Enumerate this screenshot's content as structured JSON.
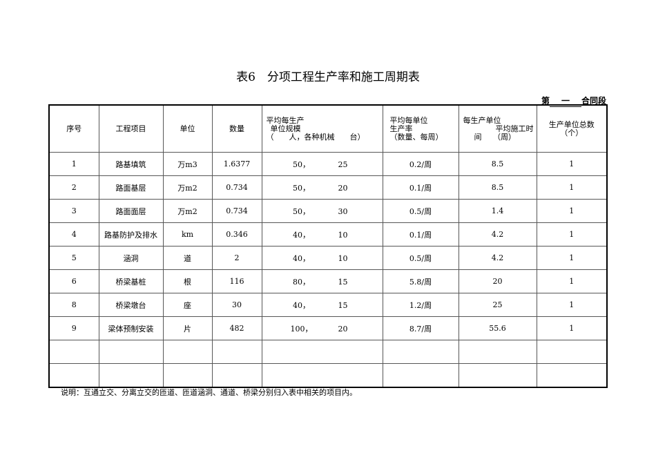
{
  "title": "表6　分项工程生产率和施工周期表",
  "section": {
    "prefix": "第",
    "value": "一",
    "suffix": "合同段"
  },
  "headers": {
    "seq": "序号",
    "item": "工程项目",
    "unit": "单位",
    "qty": "数量",
    "scale_l1": "平均每生产",
    "scale_l2": "单位规模",
    "scale_l3": "（　　人，各种机械　　台）",
    "rate_l1": "平均每单位",
    "rate_l2": "生产率",
    "rate_l3": "（数量、每周）",
    "time_l1": "每生产单位",
    "time_l2": "平均施工时",
    "time_l3": "间　　（周）",
    "count_l1": "生产单位总数",
    "count_l2": "（个）"
  },
  "rows": [
    {
      "seq": "1",
      "item": "路基填筑",
      "unit": "万m3",
      "qty": "1.6377",
      "people": "50，",
      "machines": "25",
      "rate": "0.2/周",
      "time": "8.5",
      "count": "1"
    },
    {
      "seq": "2",
      "item": "路面基层",
      "unit": "万m2",
      "qty": "0.734",
      "people": "50，",
      "machines": "20",
      "rate": "0.1/周",
      "time": "8.5",
      "count": "1"
    },
    {
      "seq": "3",
      "item": "路面面层",
      "unit": "万m2",
      "qty": "0.734",
      "people": "50，",
      "machines": "30",
      "rate": "0.5/周",
      "time": "1.4",
      "count": "1"
    },
    {
      "seq": "4",
      "item": "路基防护及排水",
      "unit": "km",
      "qty": "0.346",
      "people": "40，",
      "machines": "10",
      "rate": "0.1/周",
      "time": "4.2",
      "count": "1"
    },
    {
      "seq": "5",
      "item": "涵洞",
      "unit": "道",
      "qty": "2",
      "people": "40，",
      "machines": "10",
      "rate": "0.5/周",
      "time": "4.2",
      "count": "1"
    },
    {
      "seq": "6",
      "item": "桥梁基桩",
      "unit": "根",
      "qty": "116",
      "people": "80，",
      "machines": "15",
      "rate": "5.8/周",
      "time": "20",
      "count": "1"
    },
    {
      "seq": "8",
      "item": "桥梁墩台",
      "unit": "座",
      "qty": "30",
      "people": "40，",
      "machines": "15",
      "rate": "1.2/周",
      "time": "25",
      "count": "1"
    },
    {
      "seq": "9",
      "item": "梁体预制安装",
      "unit": "片",
      "qty": "482",
      "people": "100，",
      "machines": "20",
      "rate": "8.7/周",
      "time": "55.6",
      "count": "1"
    }
  ],
  "note": "说明：互通立交、分离立交的匝道、匝道涵洞、通道、桥梁分别归入表中相关的项目内。"
}
